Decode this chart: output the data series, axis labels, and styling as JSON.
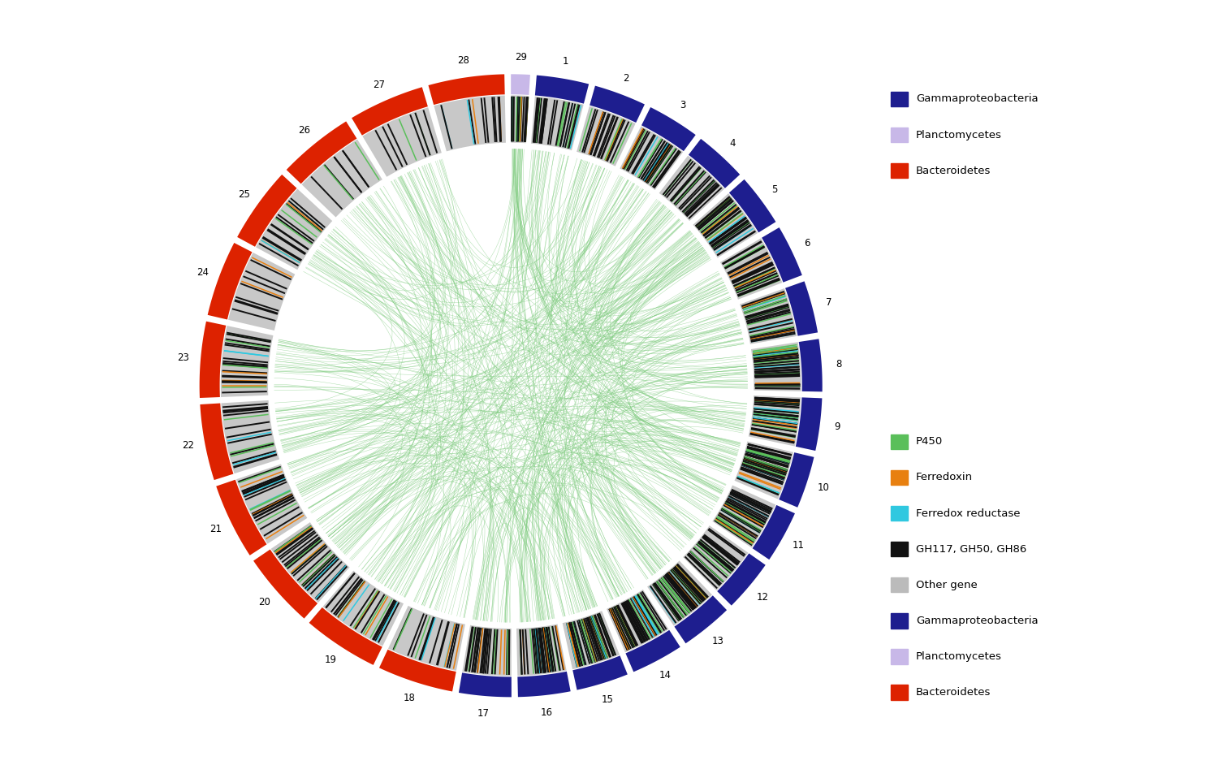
{
  "segments": [
    {
      "id": 1,
      "color": "#1e1e8f",
      "type": "Gammaproteobacteria"
    },
    {
      "id": 2,
      "color": "#1e1e8f",
      "type": "Gammaproteobacteria"
    },
    {
      "id": 3,
      "color": "#1e1e8f",
      "type": "Gammaproteobacteria"
    },
    {
      "id": 4,
      "color": "#1e1e8f",
      "type": "Gammaproteobacteria"
    },
    {
      "id": 5,
      "color": "#1e1e8f",
      "type": "Gammaproteobacteria"
    },
    {
      "id": 6,
      "color": "#1e1e8f",
      "type": "Gammaproteobacteria"
    },
    {
      "id": 7,
      "color": "#1e1e8f",
      "type": "Gammaproteobacteria"
    },
    {
      "id": 8,
      "color": "#1e1e8f",
      "type": "Gammaproteobacteria"
    },
    {
      "id": 9,
      "color": "#1e1e8f",
      "type": "Gammaproteobacteria"
    },
    {
      "id": 10,
      "color": "#1e1e8f",
      "type": "Gammaproteobacteria"
    },
    {
      "id": 11,
      "color": "#1e1e8f",
      "type": "Gammaproteobacteria"
    },
    {
      "id": 12,
      "color": "#1e1e8f",
      "type": "Gammaproteobacteria"
    },
    {
      "id": 13,
      "color": "#1e1e8f",
      "type": "Gammaproteobacteria"
    },
    {
      "id": 14,
      "color": "#1e1e8f",
      "type": "Gammaproteobacteria"
    },
    {
      "id": 15,
      "color": "#1e1e8f",
      "type": "Gammaproteobacteria"
    },
    {
      "id": 16,
      "color": "#1e1e8f",
      "type": "Gammaproteobacteria"
    },
    {
      "id": 17,
      "color": "#1e1e8f",
      "type": "Gammaproteobacteria"
    },
    {
      "id": 18,
      "color": "#dd2200",
      "type": "Bacteroidetes"
    },
    {
      "id": 19,
      "color": "#dd2200",
      "type": "Bacteroidetes"
    },
    {
      "id": 20,
      "color": "#dd2200",
      "type": "Bacteroidetes"
    },
    {
      "id": 21,
      "color": "#dd2200",
      "type": "Bacteroidetes"
    },
    {
      "id": 22,
      "color": "#dd2200",
      "type": "Bacteroidetes"
    },
    {
      "id": 23,
      "color": "#dd2200",
      "type": "Bacteroidetes"
    },
    {
      "id": 24,
      "color": "#dd2200",
      "type": "Bacteroidetes"
    },
    {
      "id": 25,
      "color": "#dd2200",
      "type": "Bacteroidetes"
    },
    {
      "id": 26,
      "color": "#dd2200",
      "type": "Bacteroidetes"
    },
    {
      "id": 27,
      "color": "#dd2200",
      "type": "Bacteroidetes"
    },
    {
      "id": 28,
      "color": "#dd2200",
      "type": "Bacteroidetes"
    },
    {
      "id": 29,
      "color": "#c8b8e8",
      "type": "Planctomycetes"
    }
  ],
  "colors": {
    "Gammaproteobacteria": "#1e1e8f",
    "Planctomycetes": "#c8b8e8",
    "Bacteroidetes": "#dd2200",
    "P450": "#5abf5a",
    "Ferredoxin": "#e88010",
    "FerRed": "#30c8e0",
    "GH": "#111111",
    "Other": "#bbbbbb",
    "connection": "#80cc80"
  },
  "legend1": [
    {
      "label": "Gammaproteobacteria",
      "color": "#1e1e8f"
    },
    {
      "label": "Planctomycetes",
      "color": "#c8b8e8"
    },
    {
      "label": "Bacteroidetes",
      "color": "#dd2200"
    }
  ],
  "legend2": [
    {
      "label": "P450",
      "color": "#5abf5a"
    },
    {
      "label": "Ferredoxin",
      "color": "#e88010"
    },
    {
      "label": "Ferredox reductase",
      "color": "#30c8e0"
    },
    {
      "label": "GH117, GH50, GH86",
      "color": "#111111"
    },
    {
      "label": "Other gene",
      "color": "#bbbbbb"
    },
    {
      "label": "Gammaproteobacteria",
      "color": "#1e1e8f"
    },
    {
      "label": "Planctomycetes",
      "color": "#c8b8e8"
    },
    {
      "label": "Bacteroidetes",
      "color": "#dd2200"
    }
  ]
}
